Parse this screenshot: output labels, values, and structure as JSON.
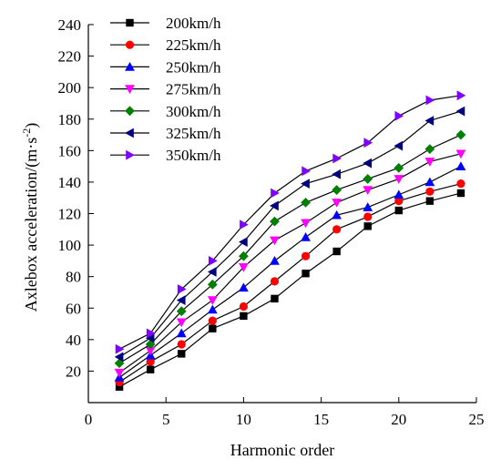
{
  "chart_data": {
    "type": "line",
    "xlabel": "Harmonic order",
    "ylabel": "Axlebox acceleration/(m·s",
    "ylabel_sup": "-2",
    "ylabel_close": ")",
    "xlim": [
      0,
      25
    ],
    "ylim": [
      0,
      240
    ],
    "xticks": [
      0,
      5,
      10,
      15,
      20,
      25
    ],
    "yticks": [
      20,
      40,
      60,
      80,
      100,
      120,
      140,
      160,
      180,
      200,
      220,
      240
    ],
    "x": [
      2,
      4,
      6,
      8,
      10,
      12,
      14,
      16,
      18,
      20,
      22,
      24
    ],
    "grid": false,
    "legend_position": "top-left",
    "series": [
      {
        "name": "200km/h",
        "color": "#000000",
        "marker": "square",
        "values": [
          10,
          21,
          31,
          47,
          55,
          66,
          82,
          96,
          112,
          122,
          128,
          133
        ]
      },
      {
        "name": "225km/h",
        "color": "#ff0000",
        "marker": "circle",
        "values": [
          13,
          26,
          37,
          52,
          61,
          77,
          93,
          110,
          118,
          128,
          134,
          139
        ]
      },
      {
        "name": "250km/h",
        "color": "#0000ff",
        "marker": "triangle-up",
        "values": [
          16,
          30,
          44,
          59,
          73,
          90,
          105,
          119,
          124,
          132,
          140,
          150
        ]
      },
      {
        "name": "275km/h",
        "color": "#ff00ff",
        "marker": "triangle-down",
        "values": [
          19,
          33,
          51,
          65,
          86,
          103,
          114,
          127,
          135,
          142,
          153,
          158
        ]
      },
      {
        "name": "300km/h",
        "color": "#008000",
        "marker": "diamond",
        "values": [
          25,
          37,
          58,
          75,
          93,
          115,
          127,
          135,
          142,
          149,
          161,
          170
        ]
      },
      {
        "name": "325km/h",
        "color": "#000080",
        "marker": "triangle-left",
        "values": [
          29,
          41,
          65,
          83,
          102,
          125,
          139,
          145,
          152,
          163,
          179,
          185
        ]
      },
      {
        "name": "350km/h",
        "color": "#8000ff",
        "marker": "triangle-right",
        "values": [
          34,
          44,
          72,
          90,
          113,
          133,
          147,
          155,
          165,
          182,
          192,
          195
        ]
      }
    ]
  }
}
